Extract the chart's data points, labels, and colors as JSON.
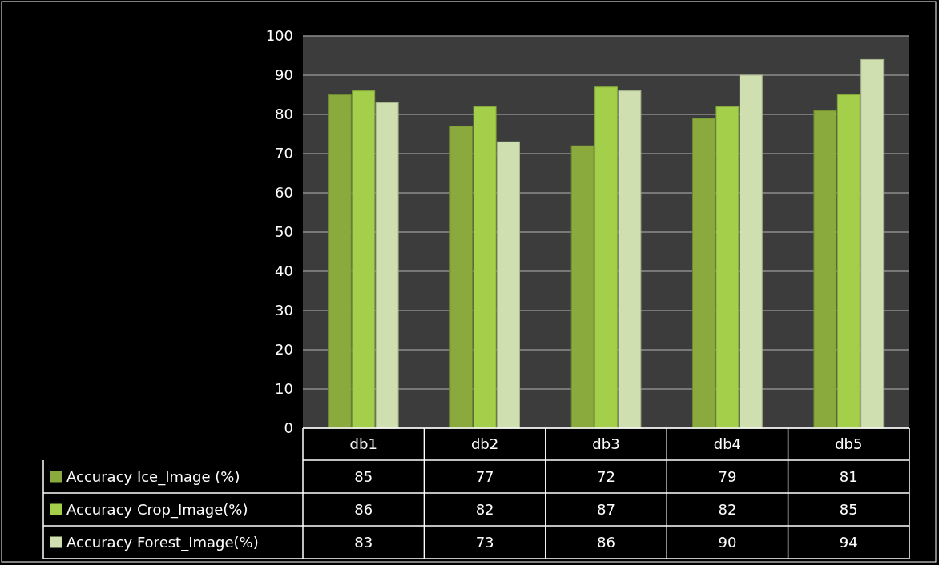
{
  "chart_data": {
    "type": "bar",
    "categories": [
      "db1",
      "db2",
      "db3",
      "db4",
      "db5"
    ],
    "series": [
      {
        "name": "Accuracy Ice_Image (%)",
        "color": "#8aaa3e",
        "values": [
          85,
          77,
          72,
          79,
          81
        ]
      },
      {
        "name": "Accuracy Crop_Image(%)",
        "color": "#a4cf4a",
        "values": [
          86,
          82,
          87,
          82,
          85
        ]
      },
      {
        "name": "Accuracy Forest_Image(%)",
        "color": "#cfdfb0",
        "values": [
          83,
          73,
          86,
          90,
          94
        ]
      }
    ],
    "ylim": [
      0,
      100
    ],
    "yticks": [
      0,
      10,
      20,
      30,
      40,
      50,
      60,
      70,
      80,
      90,
      100
    ],
    "grid": "y",
    "legend": "bottom",
    "data_labels": true
  }
}
